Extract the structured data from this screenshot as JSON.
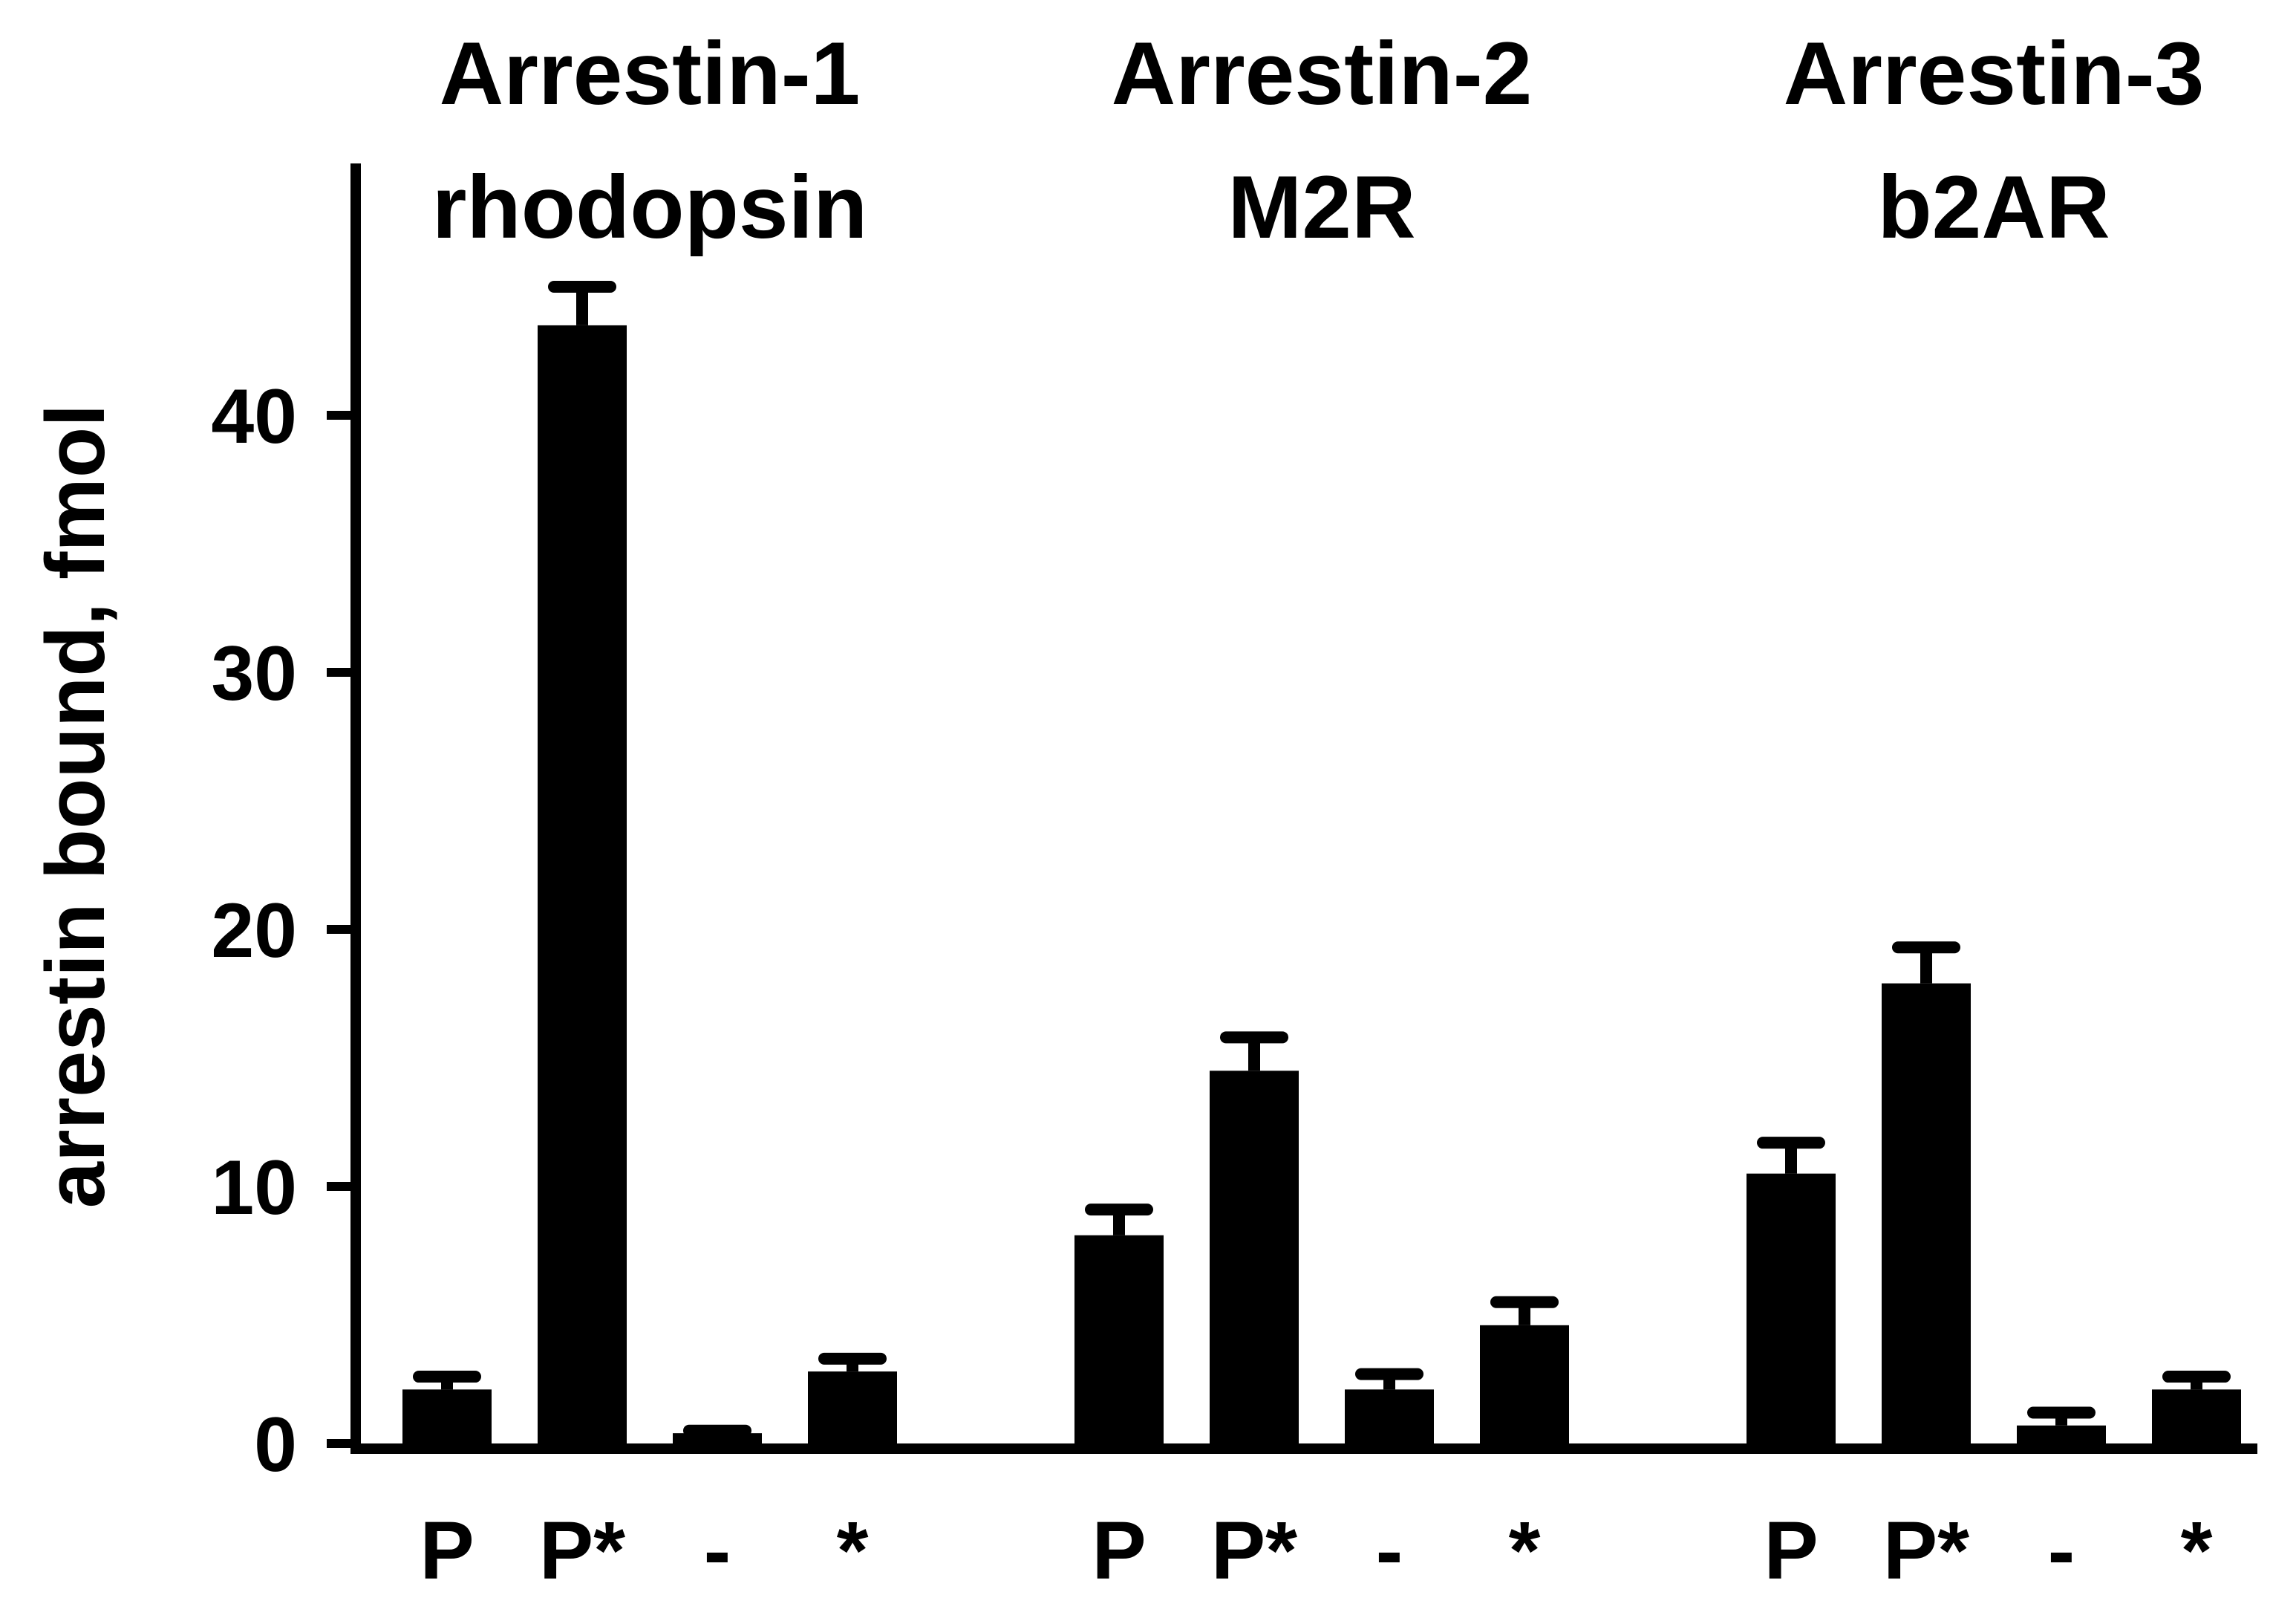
{
  "chart_data": {
    "type": "bar",
    "ylabel": "arrestin bound, fmol",
    "ylim": [
      0,
      50
    ],
    "yticks": [
      0,
      10,
      20,
      30,
      40
    ],
    "ytick_labels": [
      "0",
      "10",
      "20",
      "30",
      "40"
    ],
    "grid": false,
    "legend": "none",
    "bar_color": "#000000",
    "groups": [
      {
        "title_line1": "Arrestin-1",
        "title_line2": "rhodopsin",
        "categories": [
          "P",
          "P*",
          "-",
          "*"
        ],
        "values": [
          2.1,
          43.5,
          0.4,
          2.8
        ],
        "errors": [
          0.5,
          1.5,
          0.1,
          0.5
        ]
      },
      {
        "title_line1": "Arrestin-2",
        "title_line2": "M2R",
        "categories": [
          "P",
          "P*",
          "-",
          "*"
        ],
        "values": [
          8.1,
          14.5,
          2.1,
          4.6
        ],
        "errors": [
          1.0,
          1.3,
          0.6,
          0.9
        ]
      },
      {
        "title_line1": "Arrestin-3",
        "title_line2": "b2AR",
        "categories": [
          "P",
          "P*",
          "-",
          "*"
        ],
        "values": [
          10.5,
          17.9,
          0.7,
          2.1
        ],
        "errors": [
          1.2,
          1.4,
          0.5,
          0.5
        ]
      }
    ]
  }
}
